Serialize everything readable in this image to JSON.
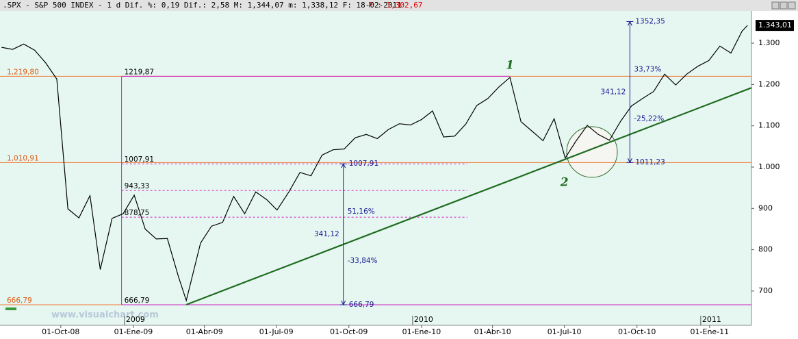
{
  "chart_data": {
    "type": "line",
    "title": ".SPX - S&P 500 INDEX - 1 d Dif. %: 0,19 Dif.: 2,58 M: 1,344,07 m: 1,338,12 F: 18-02-2011",
    "price_note": "P : 1,302,67",
    "watermark": "www.visualchart.com",
    "color": "#000000",
    "x": [
      "2008-07-18",
      "2008-08-01",
      "2008-08-15",
      "2008-08-29",
      "2008-09-12",
      "2008-09-26",
      "2008-10-10",
      "2008-10-24",
      "2008-11-07",
      "2008-11-20",
      "2008-12-05",
      "2008-12-19",
      "2009-01-02",
      "2009-01-16",
      "2009-01-30",
      "2009-02-13",
      "2009-02-27",
      "2009-03-09",
      "2009-03-27",
      "2009-04-10",
      "2009-04-24",
      "2009-05-08",
      "2009-05-22",
      "2009-06-05",
      "2009-06-19",
      "2009-07-02",
      "2009-07-17",
      "2009-07-31",
      "2009-08-14",
      "2009-08-28",
      "2009-09-11",
      "2009-09-25",
      "2009-10-09",
      "2009-10-23",
      "2009-11-06",
      "2009-11-20",
      "2009-12-04",
      "2009-12-18",
      "2010-01-01",
      "2010-01-15",
      "2010-01-29",
      "2010-02-12",
      "2010-02-26",
      "2010-03-12",
      "2010-03-26",
      "2010-04-09",
      "2010-04-23",
      "2010-05-07",
      "2010-05-21",
      "2010-06-04",
      "2010-06-18",
      "2010-07-02",
      "2010-07-16",
      "2010-07-30",
      "2010-08-13",
      "2010-08-27",
      "2010-09-10",
      "2010-09-24",
      "2010-10-08",
      "2010-10-22",
      "2010-11-05",
      "2010-11-19",
      "2010-12-03",
      "2010-12-17",
      "2010-12-31",
      "2011-01-14",
      "2011-01-28",
      "2011-02-11",
      "2011-02-18"
    ],
    "values": [
      1290,
      1285,
      1298,
      1283,
      1252,
      1213,
      899,
      877,
      931,
      752,
      876,
      887,
      932,
      850,
      826,
      827,
      735,
      677,
      816,
      857,
      866,
      929,
      887,
      940,
      921,
      896,
      940,
      987,
      979,
      1029,
      1042,
      1044,
      1071,
      1079,
      1069,
      1091,
      1105,
      1102,
      1115,
      1136,
      1073,
      1075,
      1104,
      1149,
      1166,
      1194,
      1217,
      1110,
      1087,
      1064,
      1117,
      1022,
      1064,
      1101,
      1079,
      1065,
      1110,
      1148,
      1166,
      1183,
      1225,
      1199,
      1225,
      1244,
      1258,
      1293,
      1276,
      1329,
      1343
    ],
    "xlim": [
      "2008-07-16",
      "2011-02-23"
    ],
    "xticks": [
      {
        "value": "2008-10-01",
        "label": "01-Oct-08"
      },
      {
        "value": "2009-01-01",
        "label": "01-Ene-09"
      },
      {
        "value": "2009-04-01",
        "label": "01-Abr-09"
      },
      {
        "value": "2009-07-01",
        "label": "01-Jul-09"
      },
      {
        "value": "2009-10-01",
        "label": "01-Oct-09"
      },
      {
        "value": "2010-01-01",
        "label": "01-Ene-10"
      },
      {
        "value": "2010-04-01",
        "label": "01-Abr-10"
      },
      {
        "value": "2010-07-01",
        "label": "01-Jul-10"
      },
      {
        "value": "2010-10-01",
        "label": "01-Oct-10"
      },
      {
        "value": "2011-01-01",
        "label": "01-Ene-11"
      }
    ],
    "year_ticks": [
      {
        "value": "2009-01-01",
        "label": "2009"
      },
      {
        "value": "2010-01-01",
        "label": "2010"
      },
      {
        "value": "2011-01-01",
        "label": "2011"
      }
    ],
    "ylim": [
      617,
      1378
    ],
    "yticks": [
      {
        "value": 700,
        "label": "700"
      },
      {
        "value": 800,
        "label": "800"
      },
      {
        "value": 900,
        "label": "900"
      },
      {
        "value": 1000,
        "label": "1.000"
      },
      {
        "value": 1100,
        "label": "1.100"
      },
      {
        "value": 1200,
        "label": "1.200"
      },
      {
        "value": 1300,
        "label": "1.300"
      }
    ],
    "last": {
      "value": 1343.01,
      "label": "1.343,01"
    },
    "levels": [
      {
        "value": 1219.8,
        "label": "1,219,80"
      },
      {
        "value": 1010.91,
        "label": "1,010,91"
      },
      {
        "value": 666.79,
        "label": "666,79"
      }
    ],
    "retracement": {
      "from": "2008-12-17",
      "levels": [
        {
          "value": 1219.87,
          "label": "1219,87",
          "to": "2010-04-23",
          "dashed": false
        },
        {
          "value": 1007.91,
          "label": "1007,91",
          "to": "2010-02-28",
          "dashed": true
        },
        {
          "value": 943.33,
          "label": "943,33",
          "to": "2010-02-28",
          "dashed": true
        },
        {
          "value": 878.75,
          "label": "878,75",
          "to": "2010-02-28",
          "dashed": true
        },
        {
          "value": 666.79,
          "label": "666,79",
          "to": "2011-02-23",
          "dashed": false
        }
      ]
    },
    "measures": [
      {
        "date": "2009-09-24",
        "from": 666.79,
        "to": 1007.91,
        "from_label": "666,79",
        "to_label": "1007,91",
        "change_label": "341,12",
        "up_label": "51,16%",
        "down_label": "-33,84%"
      },
      {
        "date": "2010-09-22",
        "from": 1011.23,
        "to": 1352.35,
        "from_label": "1011,23",
        "to_label": "1352,35",
        "change_label": "341,12",
        "up_label": "33,73%",
        "down_label": "-25,22%"
      }
    ],
    "trendline": {
      "x": [
        "2009-03-09",
        "2011-02-23"
      ],
      "values": [
        667,
        1192
      ],
      "color": "#1f6b1f"
    },
    "waves": [
      {
        "label": "1",
        "x": "2010-04-23",
        "value": 1245
      },
      {
        "label": "2",
        "x": "2010-07-01",
        "value": 962
      }
    ]
  }
}
